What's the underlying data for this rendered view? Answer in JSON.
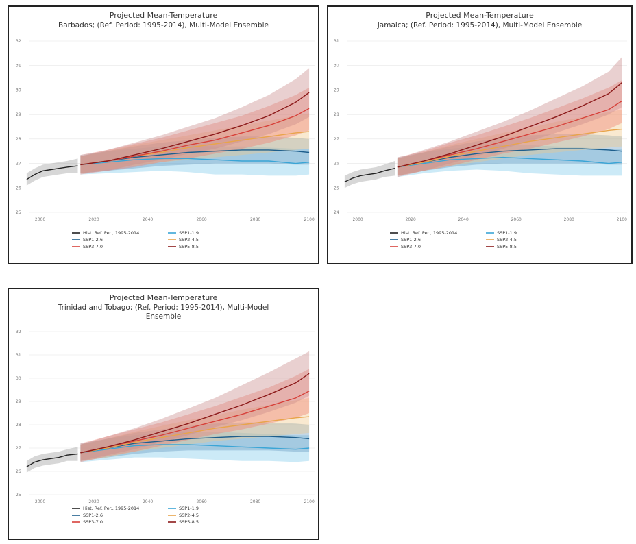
{
  "chart_data": [
    {
      "type": "line",
      "title": "Projected Mean-Temperature",
      "subtitle_lines": [
        "Barbados; (Ref. Period: 1995-2014), Multi-Model Ensemble"
      ],
      "xlabel": "",
      "ylabel": "",
      "xlim": [
        1994,
        2102
      ],
      "ylim": [
        25,
        32
      ],
      "xticks": [
        "2000",
        "2020",
        "2040",
        "2060",
        "2080",
        "2100"
      ],
      "yticks": [
        "25",
        "26",
        "27",
        "28",
        "29",
        "30",
        "31",
        "32"
      ],
      "grid": true,
      "legend_position": "bottom",
      "series": [
        {
          "name": "Hist. Ref. Per., 1995-2014",
          "color": "#222222",
          "band_color": "#9a9a9a",
          "x": [
            1995,
            1998,
            2001,
            2004,
            2007,
            2010,
            2014
          ],
          "y": [
            26.35,
            26.55,
            26.7,
            26.75,
            26.8,
            26.85,
            26.9
          ],
          "lower": [
            26.1,
            26.3,
            26.45,
            26.5,
            26.55,
            26.6,
            26.6
          ],
          "upper": [
            26.6,
            26.8,
            26.95,
            27.0,
            27.05,
            27.1,
            27.2
          ]
        },
        {
          "name": "SSP1-1.9",
          "color": "#3aa5d6",
          "band_color": "#7fcbea",
          "x": [
            2015,
            2025,
            2035,
            2045,
            2055,
            2065,
            2075,
            2085,
            2095,
            2100
          ],
          "y": [
            26.95,
            27.05,
            27.15,
            27.2,
            27.2,
            27.15,
            27.1,
            27.1,
            27.0,
            27.05
          ],
          "lower": [
            26.55,
            26.6,
            26.65,
            26.7,
            26.65,
            26.55,
            26.55,
            26.5,
            26.5,
            26.55
          ],
          "upper": [
            27.35,
            27.5,
            27.6,
            27.7,
            27.75,
            27.7,
            27.7,
            27.65,
            27.6,
            27.6
          ]
        },
        {
          "name": "SSP1-2.6",
          "color": "#1d5e8c",
          "band_color": "#6a9cc0",
          "x": [
            2015,
            2025,
            2035,
            2045,
            2055,
            2065,
            2075,
            2085,
            2095,
            2100
          ],
          "y": [
            26.95,
            27.1,
            27.25,
            27.35,
            27.45,
            27.5,
            27.55,
            27.55,
            27.5,
            27.45
          ],
          "lower": [
            26.6,
            26.7,
            26.8,
            26.9,
            26.95,
            27.0,
            27.0,
            27.0,
            26.95,
            26.95
          ],
          "upper": [
            27.3,
            27.5,
            27.7,
            27.85,
            27.95,
            28.05,
            28.1,
            28.1,
            28.05,
            28.0
          ]
        },
        {
          "name": "SSP2-4.5",
          "color": "#e8a44a",
          "band_color": "#efc88a",
          "x": [
            2015,
            2025,
            2035,
            2045,
            2055,
            2065,
            2075,
            2085,
            2095,
            2100
          ],
          "y": [
            26.95,
            27.1,
            27.3,
            27.45,
            27.65,
            27.8,
            27.95,
            28.1,
            28.25,
            28.3
          ],
          "lower": [
            26.6,
            26.75,
            26.9,
            27.05,
            27.15,
            27.25,
            27.35,
            27.45,
            27.55,
            27.6
          ],
          "upper": [
            27.3,
            27.5,
            27.75,
            27.95,
            28.15,
            28.35,
            28.55,
            28.75,
            28.95,
            29.05
          ]
        },
        {
          "name": "SSP3-7.0",
          "color": "#d7413a",
          "band_color": "#ef7d6e",
          "x": [
            2015,
            2025,
            2035,
            2045,
            2055,
            2065,
            2075,
            2085,
            2095,
            2100
          ],
          "y": [
            26.95,
            27.1,
            27.3,
            27.5,
            27.75,
            27.95,
            28.25,
            28.55,
            28.95,
            29.25
          ],
          "lower": [
            26.55,
            26.7,
            26.85,
            27.05,
            27.2,
            27.4,
            27.6,
            27.85,
            28.15,
            28.35
          ],
          "upper": [
            27.35,
            27.55,
            27.8,
            28.05,
            28.35,
            28.65,
            28.95,
            29.35,
            29.8,
            30.1
          ]
        },
        {
          "name": "SSP5-8.5",
          "color": "#8c1a1a",
          "band_color": "#c98a8a",
          "x": [
            2015,
            2025,
            2035,
            2045,
            2055,
            2065,
            2075,
            2085,
            2095,
            2100
          ],
          "y": [
            26.95,
            27.1,
            27.35,
            27.6,
            27.9,
            28.2,
            28.55,
            28.95,
            29.5,
            29.9
          ],
          "lower": [
            26.6,
            26.7,
            26.95,
            27.15,
            27.4,
            27.6,
            27.9,
            28.2,
            28.6,
            28.9
          ],
          "upper": [
            27.3,
            27.55,
            27.85,
            28.15,
            28.5,
            28.85,
            29.3,
            29.8,
            30.45,
            30.9
          ]
        }
      ]
    },
    {
      "type": "line",
      "title": "Projected Mean-Temperature",
      "subtitle_lines": [
        "Jamaica; (Ref. Period: 1995-2014), Multi-Model Ensemble"
      ],
      "xlabel": "",
      "ylabel": "",
      "xlim": [
        1994,
        2102
      ],
      "ylim": [
        24,
        31
      ],
      "xticks": [
        "2000",
        "2020",
        "2040",
        "2060",
        "2080",
        "2100"
      ],
      "yticks": [
        "24",
        "25",
        "26",
        "27",
        "28",
        "29",
        "30",
        "31"
      ],
      "grid": true,
      "legend_position": "bottom",
      "series": [
        {
          "name": "Hist. Ref. Per., 1995-2014",
          "color": "#222222",
          "band_color": "#9a9a9a",
          "x": [
            1995,
            1998,
            2001,
            2004,
            2007,
            2010,
            2014
          ],
          "y": [
            25.25,
            25.4,
            25.5,
            25.55,
            25.6,
            25.7,
            25.8
          ],
          "lower": [
            25.0,
            25.15,
            25.25,
            25.3,
            25.35,
            25.45,
            25.5
          ],
          "upper": [
            25.5,
            25.65,
            25.75,
            25.8,
            25.85,
            25.95,
            26.1
          ]
        },
        {
          "name": "SSP1-1.9",
          "color": "#3aa5d6",
          "band_color": "#7fcbea",
          "x": [
            2015,
            2025,
            2035,
            2045,
            2055,
            2065,
            2075,
            2085,
            2095,
            2100
          ],
          "y": [
            25.85,
            26.0,
            26.15,
            26.2,
            26.25,
            26.2,
            26.15,
            26.1,
            26.0,
            26.05
          ],
          "lower": [
            25.45,
            25.6,
            25.7,
            25.75,
            25.7,
            25.6,
            25.55,
            25.5,
            25.5,
            25.5
          ],
          "upper": [
            26.25,
            26.45,
            26.6,
            26.7,
            26.75,
            26.75,
            26.7,
            26.65,
            26.6,
            26.6
          ]
        },
        {
          "name": "SSP1-2.6",
          "color": "#1d5e8c",
          "band_color": "#6a9cc0",
          "x": [
            2015,
            2025,
            2035,
            2045,
            2055,
            2065,
            2075,
            2085,
            2095,
            2100
          ],
          "y": [
            25.85,
            26.05,
            26.25,
            26.4,
            26.5,
            26.55,
            26.6,
            26.6,
            26.55,
            26.5
          ],
          "lower": [
            25.5,
            25.7,
            25.85,
            25.95,
            26.0,
            26.0,
            26.0,
            26.0,
            25.95,
            25.95
          ],
          "upper": [
            26.2,
            26.45,
            26.7,
            26.9,
            27.05,
            27.15,
            27.2,
            27.2,
            27.15,
            27.1
          ]
        },
        {
          "name": "SSP2-4.5",
          "color": "#e8a44a",
          "band_color": "#efc88a",
          "x": [
            2015,
            2025,
            2035,
            2045,
            2055,
            2065,
            2075,
            2085,
            2095,
            2100
          ],
          "y": [
            25.85,
            26.05,
            26.3,
            26.5,
            26.7,
            26.9,
            27.05,
            27.2,
            27.35,
            27.4
          ],
          "lower": [
            25.5,
            25.7,
            25.9,
            26.05,
            26.2,
            26.35,
            26.45,
            26.55,
            26.65,
            26.7
          ],
          "upper": [
            26.2,
            26.45,
            26.75,
            27.0,
            27.25,
            27.45,
            27.7,
            27.9,
            28.1,
            28.2
          ]
        },
        {
          "name": "SSP3-7.0",
          "color": "#d7413a",
          "band_color": "#ef7d6e",
          "x": [
            2015,
            2025,
            2035,
            2045,
            2055,
            2065,
            2075,
            2085,
            2095,
            2100
          ],
          "y": [
            25.85,
            26.1,
            26.35,
            26.6,
            26.9,
            27.2,
            27.5,
            27.85,
            28.2,
            28.55
          ],
          "lower": [
            25.45,
            25.7,
            25.9,
            26.15,
            26.4,
            26.6,
            26.85,
            27.1,
            27.4,
            27.65
          ],
          "upper": [
            26.25,
            26.5,
            26.85,
            27.15,
            27.5,
            27.85,
            28.25,
            28.65,
            29.1,
            29.4
          ]
        },
        {
          "name": "SSP5-8.5",
          "color": "#8c1a1a",
          "band_color": "#c98a8a",
          "x": [
            2015,
            2025,
            2035,
            2045,
            2055,
            2065,
            2075,
            2085,
            2095,
            2100
          ],
          "y": [
            25.85,
            26.1,
            26.4,
            26.75,
            27.1,
            27.5,
            27.9,
            28.35,
            28.85,
            29.3
          ],
          "lower": [
            25.5,
            25.7,
            26.0,
            26.3,
            26.6,
            26.9,
            27.25,
            27.6,
            28.0,
            28.3
          ],
          "upper": [
            26.2,
            26.55,
            26.9,
            27.3,
            27.7,
            28.15,
            28.65,
            29.15,
            29.75,
            30.35
          ]
        }
      ]
    },
    {
      "type": "line",
      "title": "Projected Mean-Temperature",
      "subtitle_lines": [
        "Trinidad and Tobago; (Ref. Period: 1995-2014), Multi-Model",
        "Ensemble"
      ],
      "xlabel": "",
      "ylabel": "",
      "xlim": [
        1994,
        2102
      ],
      "ylim": [
        25,
        32
      ],
      "xticks": [
        "2000",
        "2020",
        "2040",
        "2060",
        "2080",
        "2100"
      ],
      "yticks": [
        "25",
        "26",
        "27",
        "28",
        "29",
        "30",
        "31",
        "32"
      ],
      "grid": true,
      "legend_position": "bottom",
      "series": [
        {
          "name": "Hist. Ref. Per., 1995-2014",
          "color": "#222222",
          "band_color": "#9a9a9a",
          "x": [
            1995,
            1998,
            2001,
            2004,
            2007,
            2010,
            2014
          ],
          "y": [
            26.2,
            26.4,
            26.5,
            26.55,
            26.6,
            26.7,
            26.75
          ],
          "lower": [
            25.95,
            26.15,
            26.25,
            26.3,
            26.35,
            26.45,
            26.45
          ],
          "upper": [
            26.45,
            26.65,
            26.75,
            26.8,
            26.85,
            26.95,
            27.05
          ]
        },
        {
          "name": "SSP1-1.9",
          "color": "#3aa5d6",
          "band_color": "#7fcbea",
          "x": [
            2015,
            2025,
            2035,
            2045,
            2055,
            2065,
            2075,
            2085,
            2095,
            2100
          ],
          "y": [
            26.8,
            26.95,
            27.1,
            27.15,
            27.15,
            27.1,
            27.05,
            27.0,
            26.95,
            27.0
          ],
          "lower": [
            26.4,
            26.5,
            26.6,
            26.6,
            26.55,
            26.5,
            26.45,
            26.45,
            26.4,
            26.45
          ],
          "upper": [
            27.2,
            27.4,
            27.55,
            27.65,
            27.7,
            27.7,
            27.65,
            27.6,
            27.55,
            27.55
          ]
        },
        {
          "name": "SSP1-2.6",
          "color": "#1d5e8c",
          "band_color": "#6a9cc0",
          "x": [
            2015,
            2025,
            2035,
            2045,
            2055,
            2065,
            2075,
            2085,
            2095,
            2100
          ],
          "y": [
            26.8,
            27.0,
            27.2,
            27.3,
            27.4,
            27.45,
            27.5,
            27.5,
            27.45,
            27.4
          ],
          "lower": [
            26.45,
            26.6,
            26.75,
            26.85,
            26.9,
            26.9,
            26.9,
            26.9,
            26.85,
            26.85
          ],
          "upper": [
            27.15,
            27.4,
            27.65,
            27.8,
            27.95,
            28.05,
            28.1,
            28.1,
            28.05,
            28.0
          ]
        },
        {
          "name": "SSP2-4.5",
          "color": "#e8a44a",
          "band_color": "#efc88a",
          "x": [
            2015,
            2025,
            2035,
            2045,
            2055,
            2065,
            2075,
            2085,
            2095,
            2100
          ],
          "y": [
            26.8,
            27.0,
            27.25,
            27.45,
            27.65,
            27.85,
            28.0,
            28.15,
            28.3,
            28.35
          ],
          "lower": [
            26.45,
            26.6,
            26.85,
            27.0,
            27.15,
            27.3,
            27.4,
            27.5,
            27.6,
            27.65
          ],
          "upper": [
            27.15,
            27.4,
            27.7,
            27.95,
            28.2,
            28.4,
            28.65,
            28.85,
            29.05,
            29.15
          ]
        },
        {
          "name": "SSP3-7.0",
          "color": "#d7413a",
          "band_color": "#ef7d6e",
          "x": [
            2015,
            2025,
            2035,
            2045,
            2055,
            2065,
            2075,
            2085,
            2095,
            2100
          ],
          "y": [
            26.8,
            27.05,
            27.3,
            27.55,
            27.85,
            28.15,
            28.45,
            28.8,
            29.15,
            29.45
          ],
          "lower": [
            26.4,
            26.65,
            26.85,
            27.1,
            27.35,
            27.6,
            27.8,
            28.05,
            28.3,
            28.5
          ],
          "upper": [
            27.2,
            27.5,
            27.8,
            28.1,
            28.45,
            28.8,
            29.2,
            29.6,
            30.1,
            30.4
          ]
        },
        {
          "name": "SSP5-8.5",
          "color": "#8c1a1a",
          "band_color": "#c98a8a",
          "x": [
            2015,
            2025,
            2035,
            2045,
            2055,
            2065,
            2075,
            2085,
            2095,
            2100
          ],
          "y": [
            26.8,
            27.05,
            27.35,
            27.7,
            28.05,
            28.45,
            28.85,
            29.3,
            29.8,
            30.2
          ],
          "lower": [
            26.45,
            26.7,
            26.95,
            27.25,
            27.55,
            27.9,
            28.2,
            28.55,
            28.95,
            29.25
          ],
          "upper": [
            27.15,
            27.5,
            27.85,
            28.25,
            28.7,
            29.15,
            29.7,
            30.25,
            30.85,
            31.15
          ]
        }
      ]
    }
  ]
}
